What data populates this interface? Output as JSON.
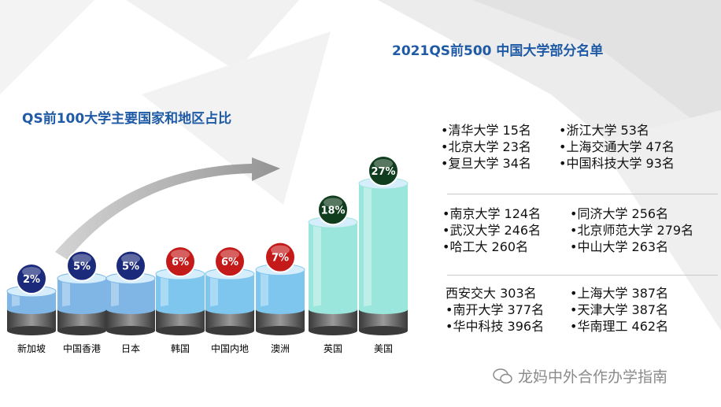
{
  "title": "2021QS前500 中国大学部分名单",
  "chart_title": "QS前100大学主要国家和地区占比",
  "chart_data": {
    "type": "bar",
    "title": "QS前100大学主要国家和地区占比",
    "categories": [
      "新加坡",
      "中国香港",
      "日本",
      "韩国",
      "中国内地",
      "澳洲",
      "英国",
      "美国"
    ],
    "values": [
      2,
      5,
      5,
      6,
      6,
      7,
      18,
      27
    ],
    "value_labels": [
      "2%",
      "5%",
      "5%",
      "6%",
      "6%",
      "7%",
      "18%",
      "27%"
    ],
    "ylim": [
      0,
      27
    ],
    "grid": false,
    "legend": "none",
    "bubble_colors": [
      "#1b2a7a",
      "#1b2a7a",
      "#1b2a7a",
      "#c41a1a",
      "#c41a1a",
      "#c41a1a",
      "#0f3d1d",
      "#0f3d1d"
    ],
    "bar_colors": [
      "#7fb6e6",
      "#7fb6e6",
      "#7fb6e6",
      "#7fc6ee",
      "#7fc6ee",
      "#7fc6ee",
      "#9ae6dc",
      "#9ae6dc"
    ]
  },
  "rank_groups": [
    {
      "rows": [
        [
          "•清华大学  15名",
          "•浙江大学      53名"
        ],
        [
          "•北京大学  23名",
          "•上海交通大学   47名"
        ],
        [
          "•复旦大学  34名",
          "•中国科技大学 93名"
        ]
      ]
    },
    {
      "rows": [
        [
          "•南京大学  124名",
          "•同济大学   256名"
        ],
        [
          "•武汉大学  246名",
          "•北京师范大学 279名"
        ],
        [
          "•哈工大    260名",
          "•中山大学 263名"
        ]
      ]
    },
    {
      "rows": [
        [
          " 西安交大  303名",
          "•上海大学   387名"
        ],
        [
          "•南开大学  377名",
          " •天津大学  387名"
        ],
        [
          "•华中科技  396名",
          "•华南理工   462名"
        ]
      ]
    }
  ],
  "watermark": "龙妈中外合作办学指南"
}
